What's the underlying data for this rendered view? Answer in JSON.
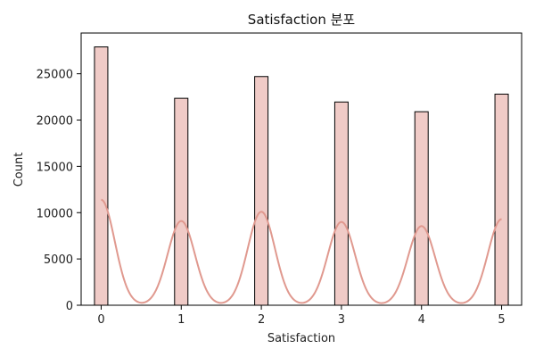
{
  "chart_data": {
    "type": "bar",
    "title": "Satisfaction 분포",
    "xlabel": "Satisfaction",
    "ylabel": "Count",
    "xlim": [
      -0.25,
      5.25
    ],
    "ylim": [
      0,
      29400
    ],
    "x_ticks": [
      0,
      1,
      2,
      3,
      4,
      5
    ],
    "y_ticks": [
      0,
      5000,
      10000,
      15000,
      20000,
      25000
    ],
    "grid": false,
    "bin_width": 0.1667,
    "bars": [
      {
        "x": 0,
        "value": 27900
      },
      {
        "x": 1,
        "value": 22350
      },
      {
        "x": 2,
        "value": 24700
      },
      {
        "x": 3,
        "value": 21950
      },
      {
        "x": 4,
        "value": 20900
      },
      {
        "x": 5,
        "value": 22800
      }
    ],
    "kde_peaks": [
      {
        "x": 0,
        "value": 11400
      },
      {
        "x": 1,
        "value": 9100
      },
      {
        "x": 2,
        "value": 10100
      },
      {
        "x": 3,
        "value": 9000
      },
      {
        "x": 4,
        "value": 8550
      },
      {
        "x": 5,
        "value": 9300
      }
    ],
    "kde_sigma": 0.17,
    "colors": {
      "bar_fill": "#f0cbc7",
      "bar_edge": "#000000",
      "kde_line": "#e0998f"
    }
  }
}
